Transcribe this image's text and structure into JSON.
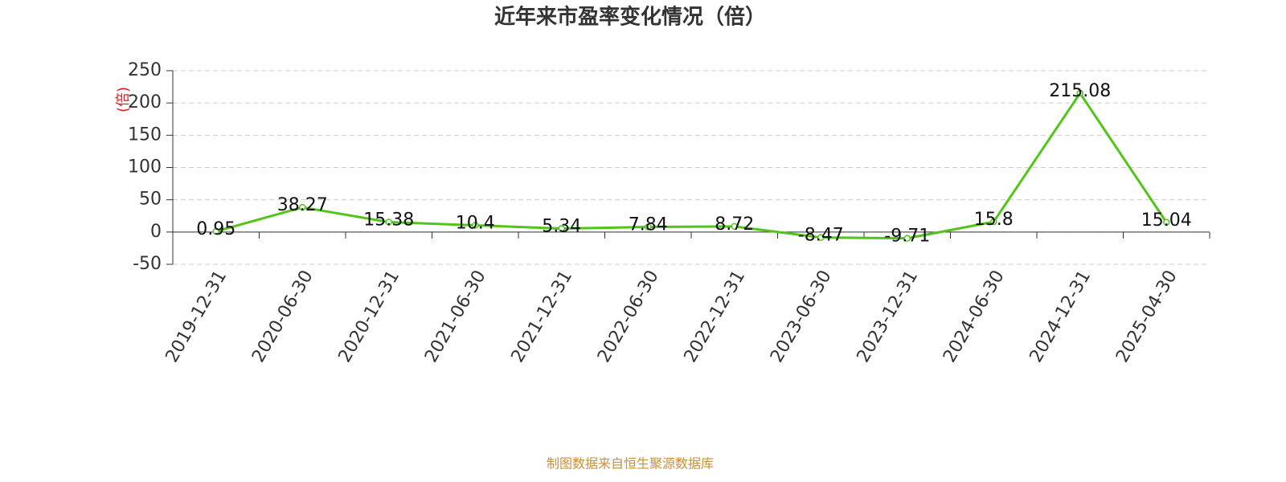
{
  "chart_data": {
    "type": "line",
    "title": "近年来市盈率变化情况（倍）",
    "y_label": "(倍)",
    "categories": [
      "2019-12-31",
      "2020-06-30",
      "2020-12-31",
      "2021-06-30",
      "2021-12-31",
      "2022-06-30",
      "2022-12-31",
      "2023-06-30",
      "2023-12-31",
      "2024-06-30",
      "2024-12-31",
      "2025-04-30"
    ],
    "values": [
      0.95,
      38.27,
      15.38,
      10.4,
      5.34,
      7.84,
      8.72,
      -8.47,
      -9.71,
      15.8,
      215.08,
      15.04
    ],
    "color": "#52c41a",
    "ylim": [
      -50,
      250
    ],
    "yticks": [
      -50,
      0,
      50,
      100,
      150,
      200,
      250
    ],
    "grid": true,
    "source": "制图数据来自恒生聚源数据库"
  }
}
